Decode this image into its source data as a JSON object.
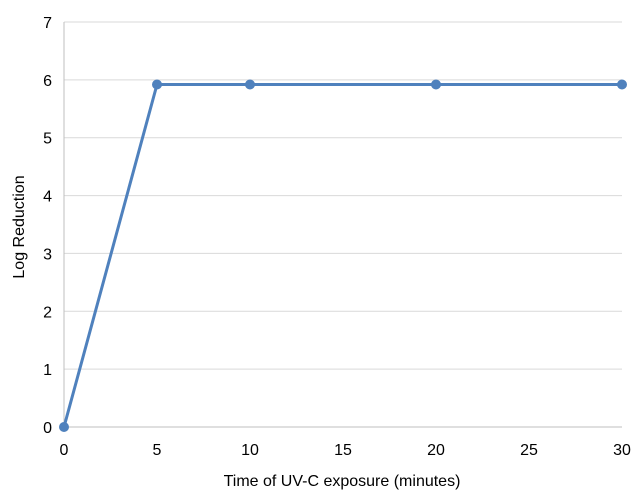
{
  "chart_data": {
    "type": "line",
    "xlabel": "Time of UV-C exposure (minutes)",
    "ylabel": "Log Reduction",
    "xlim": [
      0,
      30
    ],
    "ylim": [
      0,
      7
    ],
    "xticks": [
      "0",
      "5",
      "10",
      "15",
      "20",
      "25",
      "30"
    ],
    "yticks": [
      "0",
      "1",
      "2",
      "3",
      "4",
      "5",
      "6",
      "7"
    ],
    "grid": "horizontal",
    "legend": "none",
    "series": [
      {
        "color": "#4f81bd",
        "points": [
          {
            "x": 0,
            "y": 0
          },
          {
            "x": 5,
            "y": 5.92
          },
          {
            "x": 10,
            "y": 5.92
          },
          {
            "x": 20,
            "y": 5.92
          },
          {
            "x": 30,
            "y": 5.92
          }
        ]
      }
    ]
  }
}
